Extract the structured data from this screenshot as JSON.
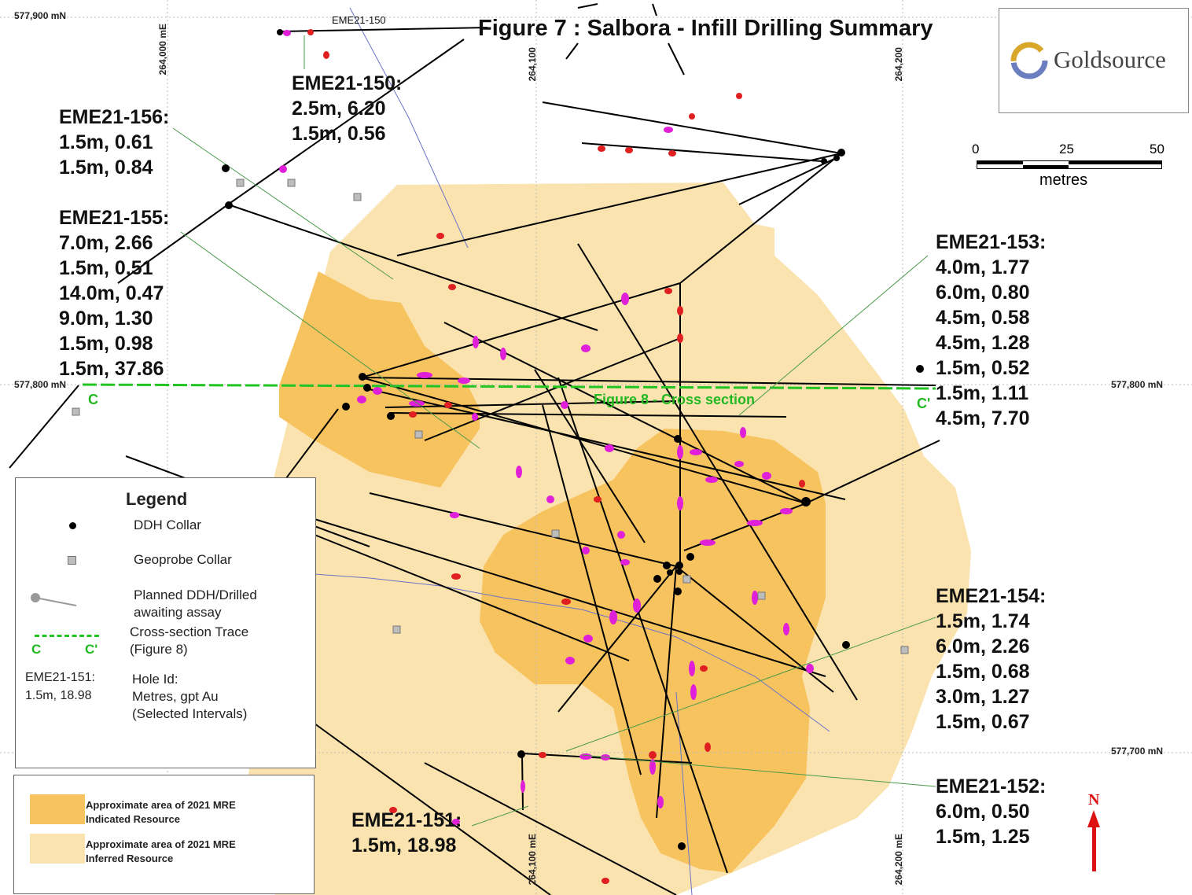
{
  "title": "Figure 7 : Salbora - Infill Drilling Summary",
  "logo": {
    "text": "Goldsource"
  },
  "grid": {
    "north_top": "577,900 mN",
    "north_mid_left": "577,800 mN",
    "north_mid_right": "577,800 mN",
    "north_low": "577,700 mN",
    "east_264000": "264,000 mE",
    "east_264100": "264,100",
    "east_264200": "264,200",
    "east_264100_bottom": "264,100 mE",
    "east_264200_bottom": "264,200 mE"
  },
  "scale_bar": {
    "ticks": [
      "0",
      "25",
      "50"
    ],
    "unit": "metres"
  },
  "section": {
    "label": "Figure 8 - Cross section",
    "c_left": "C",
    "c_right": "C'"
  },
  "small_hole_label": "EME21-150",
  "holes": [
    {
      "id": "EME21-150:",
      "lines": [
        "2.5m, 6.20",
        "1.5m, 0.56"
      ]
    },
    {
      "id": "EME21-156:",
      "lines": [
        "1.5m, 0.61",
        "1.5m, 0.84"
      ]
    },
    {
      "id": "EME21-155:",
      "lines": [
        "7.0m, 2.66",
        "1.5m, 0.51",
        "14.0m, 0.47",
        "9.0m, 1.30",
        "1.5m, 0.98",
        "1.5m, 37.86"
      ]
    },
    {
      "id": "EME21-153:",
      "lines": [
        "4.0m, 1.77",
        "6.0m, 0.80",
        "4.5m, 0.58",
        "4.5m, 1.28",
        "1.5m, 0.52",
        "1.5m, 1.11",
        "4.5m, 7.70"
      ]
    },
    {
      "id": "EME21-154:",
      "lines": [
        "1.5m, 1.74",
        "6.0m, 2.26",
        "1.5m, 0.68",
        "3.0m, 1.27",
        "1.5m, 0.67"
      ]
    },
    {
      "id": "EME21-152:",
      "lines": [
        "6.0m, 0.50",
        "1.5m, 1.25"
      ]
    },
    {
      "id": "EME21-151:",
      "lines": [
        "1.5m, 18.98"
      ]
    }
  ],
  "north_arrow": "N",
  "legend": {
    "title": "Legend",
    "items": [
      {
        "symbol": "ddh-collar",
        "text": "DDH Collar"
      },
      {
        "symbol": "geoprobe-collar",
        "text": "Geoprobe Collar"
      },
      {
        "symbol": "planned-ddh",
        "text": "Planned DDH/Drilled awaiting assay"
      },
      {
        "symbol": "cross-section-trace",
        "text": "Cross-section Trace (Figure 8)"
      }
    ],
    "trace_c": "C",
    "trace_c_prime": "C'",
    "sample_id": "EME21-151:",
    "sample_value": "1.5m, 18.98",
    "hole_desc": [
      "Hole Id:",
      "Metres, gpt Au",
      "(Selected Intervals)"
    ],
    "resources": [
      {
        "text": "Approximate area of 2021 MRE Indicated Resource",
        "color": "#f7c35f"
      },
      {
        "text": "Approximate area of 2021 MRE Inferred Resource",
        "color": "#fbe3b0"
      }
    ]
  },
  "colors": {
    "indicated": "#f7c35f",
    "inferred": "#fbe3b0",
    "section_line": "#22c422",
    "intercept_high": "#e020d8",
    "intercept_mid": "#e02020",
    "intercept_low": "#f0e020",
    "north_arrow": "#dd1111"
  }
}
